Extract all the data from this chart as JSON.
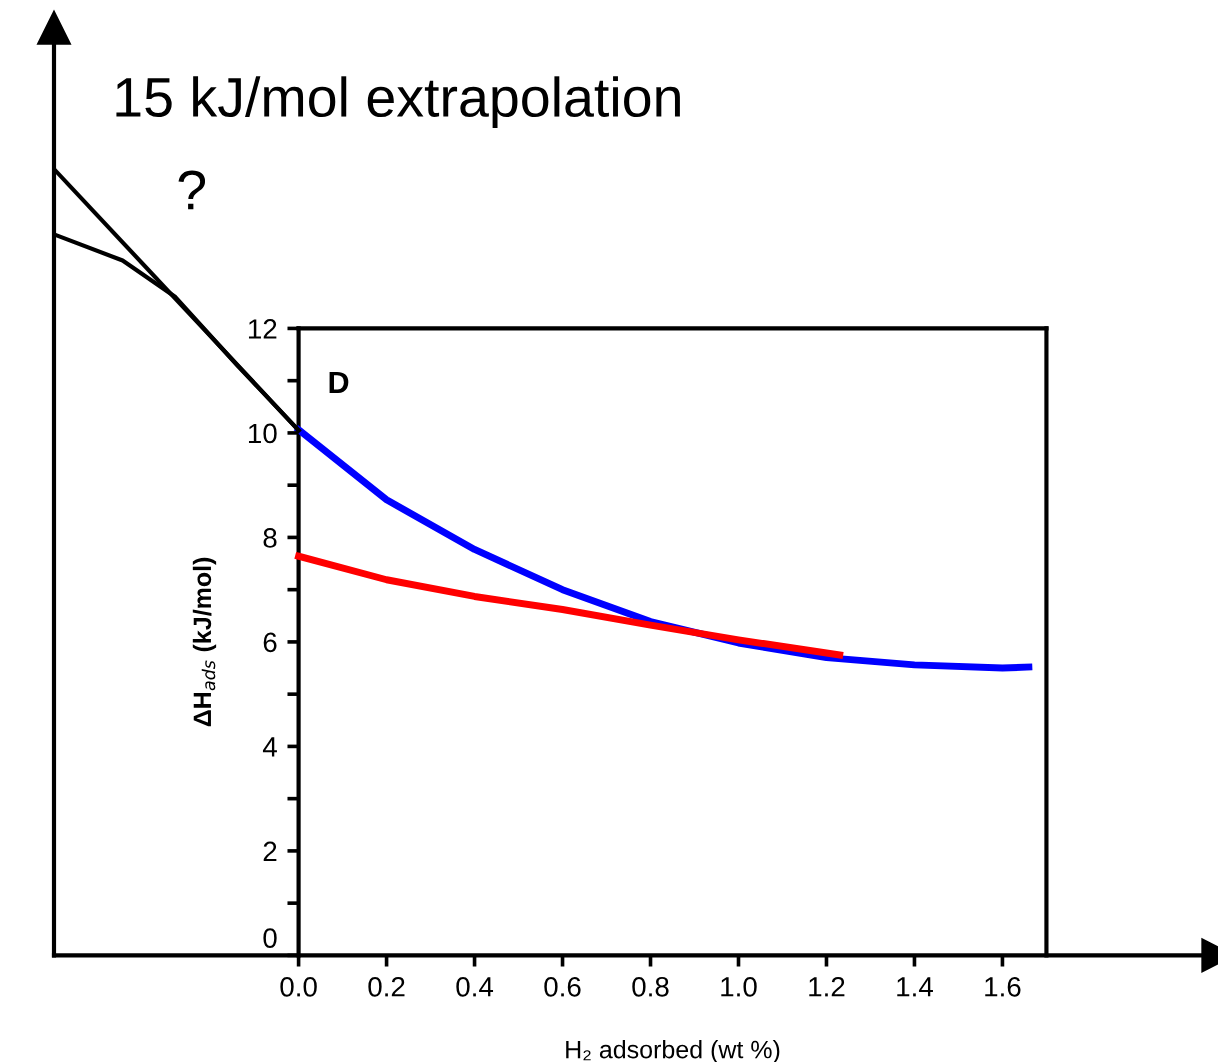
{
  "chart_data": {
    "type": "line",
    "xlabel": "H₂ adsorbed (wt %)",
    "ylabel": "ΔH$_{ads}$ (kJ/mol)",
    "xlim": [
      -0.556,
      2.09
    ],
    "ylim": [
      0,
      17.75
    ],
    "xticks": [
      {
        "value": 0,
        "label": "0.0"
      },
      {
        "value": 0.2,
        "label": "0.2"
      },
      {
        "value": 0.4,
        "label": "0.4"
      },
      {
        "value": 0.6,
        "label": "0.6"
      },
      {
        "value": 0.8,
        "label": "0.8"
      },
      {
        "value": 1.0,
        "label": "1.0"
      },
      {
        "value": 1.2,
        "label": "1.2"
      },
      {
        "value": 1.4,
        "label": "1.4"
      },
      {
        "value": 1.6,
        "label": "1.6"
      }
    ],
    "yticks": [
      0,
      {
        "value": 1,
        "label": null
      },
      2,
      {
        "value": 3,
        "label": null
      },
      4,
      {
        "value": 5,
        "label": null
      },
      6,
      {
        "value": 7,
        "label": null
      },
      8,
      {
        "value": 9,
        "label": null
      },
      10,
      {
        "value": 11,
        "label": null
      },
      12
    ],
    "series": [
      {
        "color": "#0000ff",
        "x": [
          0,
          0.2,
          0.4,
          0.6,
          0.8,
          1.0,
          1.2,
          1.4,
          1.6,
          1.66
        ],
        "values": [
          10.06,
          8.72,
          7.77,
          7.0,
          6.39,
          5.98,
          5.7,
          5.56,
          5.5,
          5.52
        ]
      },
      {
        "color": "#ff0000",
        "x": [
          0,
          0.2,
          0.4,
          0.6,
          0.8,
          1.0,
          1.23
        ],
        "values": [
          7.64,
          7.19,
          6.87,
          6.62,
          6.32,
          6.04,
          5.75
        ]
      },
      {
        "color": "#000000",
        "x": [
          -0.556,
          0
        ],
        "values": [
          15.05,
          10.05
        ]
      },
      {
        "color": "#000000",
        "x": [
          -0.556,
          -0.4,
          -0.28,
          -0.14,
          0
        ],
        "values": [
          13.8,
          13.3,
          12.6,
          11.3,
          10.05
        ]
      }
    ],
    "ref_lines": [
      {
        "axis": "x",
        "value": -0.556,
        "color": "#000000"
      },
      {
        "axis": "x",
        "value": 0,
        "color": "#000000"
      },
      {
        "axis": "x",
        "value": 1.7,
        "color": "#000000"
      },
      {
        "axis": "y",
        "value": 12,
        "color": "#000000"
      }
    ],
    "annotations": [
      "15 kJ/mol extrapolation",
      "?",
      "D"
    ],
    "grid": false,
    "legend": false,
    "marker": "none",
    "line_style": "solid"
  }
}
